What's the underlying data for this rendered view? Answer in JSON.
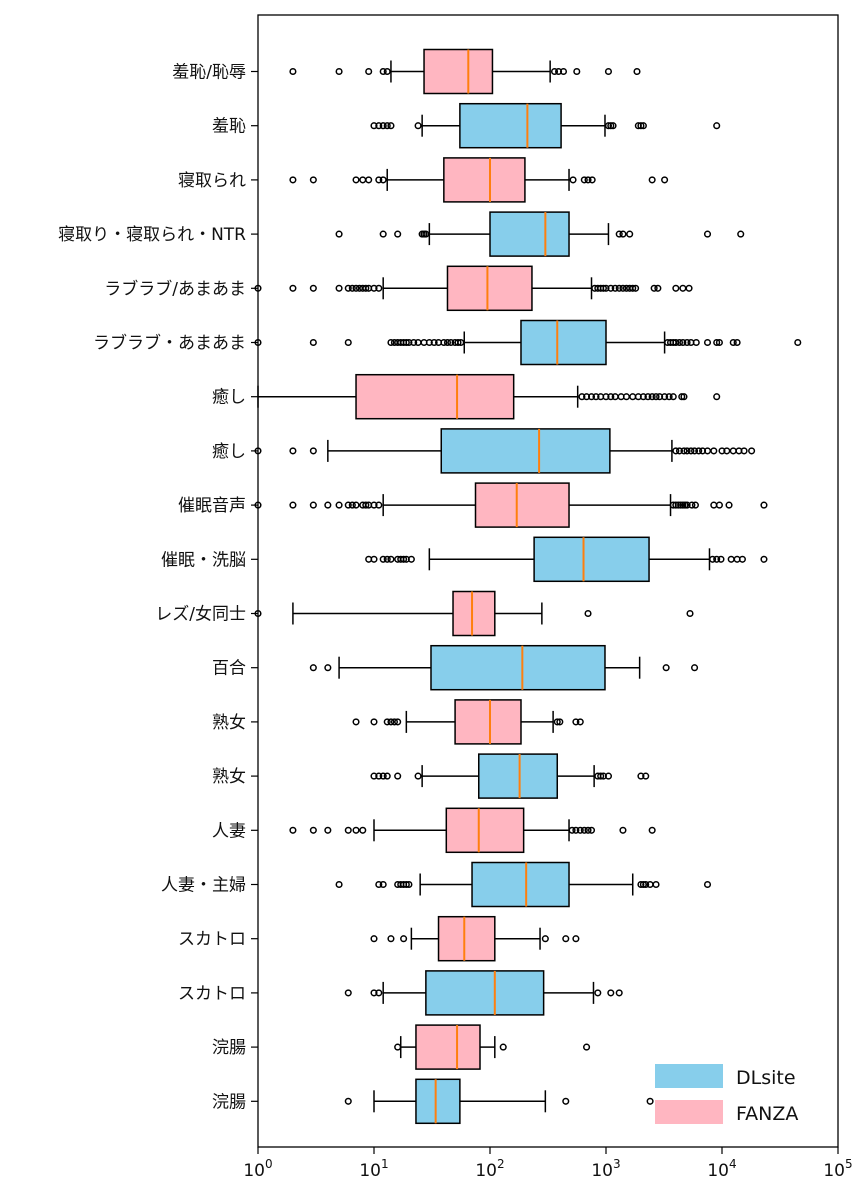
{
  "chart_data": {
    "type": "boxplot",
    "orientation": "horizontal",
    "x_scale": "log",
    "xlim": [
      1,
      100000
    ],
    "x_ticks": [
      {
        "value": 1,
        "base": "10",
        "exp": "0"
      },
      {
        "value": 10,
        "base": "10",
        "exp": "1"
      },
      {
        "value": 100,
        "base": "10",
        "exp": "2"
      },
      {
        "value": 1000,
        "base": "10",
        "exp": "3"
      },
      {
        "value": 10000,
        "base": "10",
        "exp": "4"
      },
      {
        "value": 100000,
        "base": "10",
        "exp": "5"
      }
    ],
    "grid": false,
    "legend_position": "bottom-right",
    "legend": [
      {
        "label": "DLsite",
        "color": "#87ceeb"
      },
      {
        "label": "FANZA",
        "color": "#ffb6c1"
      }
    ],
    "median_color": "#ff7f0e",
    "categories": [
      {
        "label": "羞恥/恥辱",
        "source": "FANZA",
        "whisker_low": 14,
        "q1": 27,
        "median": 65,
        "q3": 105,
        "whisker_high": 330,
        "fliers": [
          2,
          5,
          9,
          12,
          13,
          360,
          390,
          430,
          560,
          1050,
          1850
        ]
      },
      {
        "label": "羞恥",
        "source": "DLsite",
        "whisker_low": 26,
        "q1": 55,
        "median": 210,
        "q3": 410,
        "whisker_high": 980,
        "fliers": [
          10,
          11,
          12,
          13,
          14,
          24,
          1050,
          1100,
          1150,
          1900,
          2000,
          2100,
          9000
        ]
      },
      {
        "label": "寝取られ",
        "source": "FANZA",
        "whisker_low": 13,
        "q1": 40,
        "median": 100,
        "q3": 200,
        "whisker_high": 480,
        "fliers": [
          2,
          3,
          7,
          8,
          9,
          11,
          12,
          520,
          650,
          700,
          760,
          2500,
          3200
        ]
      },
      {
        "label": "寝取り・寝取られ・NTR",
        "source": "DLsite",
        "whisker_low": 30,
        "q1": 100,
        "median": 300,
        "q3": 480,
        "whisker_high": 1050,
        "fliers": [
          5,
          12,
          16,
          26,
          27,
          28,
          1300,
          1400,
          1600,
          7500,
          14500
        ]
      },
      {
        "label": "ラブラブ/あまあま",
        "source": "FANZA",
        "whisker_low": 12,
        "q1": 43,
        "median": 95,
        "q3": 230,
        "whisker_high": 750,
        "fliers": [
          1,
          2,
          3,
          5,
          6,
          6.5,
          7,
          7.5,
          8,
          8.5,
          9,
          10,
          11,
          800,
          850,
          900,
          950,
          1000,
          1100,
          1200,
          1300,
          1400,
          1500,
          1600,
          1700,
          1800,
          2600,
          2800,
          4000,
          4600,
          5200
        ]
      },
      {
        "label": "ラブラブ・あまあま",
        "source": "DLsite",
        "whisker_low": 60,
        "q1": 185,
        "median": 380,
        "q3": 1000,
        "whisker_high": 3200,
        "fliers": [
          1,
          3,
          6,
          14,
          15,
          16,
          17,
          18,
          19,
          20,
          22,
          24,
          27,
          30,
          33,
          36,
          40,
          43,
          46,
          50,
          53,
          56,
          3400,
          3600,
          3800,
          4000,
          4300,
          4600,
          5000,
          5400,
          6000,
          7500,
          9000,
          9500,
          12500,
          13500,
          45000
        ]
      },
      {
        "label": "癒し",
        "source": "FANZA",
        "whisker_low": 1,
        "q1": 7,
        "median": 52,
        "q3": 160,
        "whisker_high": 570,
        "fliers": [
          620,
          680,
          750,
          820,
          900,
          1000,
          1100,
          1200,
          1350,
          1500,
          1700,
          1900,
          2100,
          2300,
          2500,
          2700,
          2900,
          3200,
          3500,
          3800,
          4500,
          4700,
          9000
        ]
      },
      {
        "label": "癒し",
        "source": "DLsite",
        "whisker_low": 4,
        "q1": 38,
        "median": 265,
        "q3": 1080,
        "whisker_high": 3700,
        "fliers": [
          1,
          2,
          3,
          4000,
          4300,
          4700,
          5000,
          5400,
          5800,
          6300,
          6800,
          7500,
          8500,
          10000,
          11000,
          12500,
          14000,
          15500,
          18000
        ]
      },
      {
        "label": "催眠音声",
        "source": "FANZA",
        "whisker_low": 12,
        "q1": 75,
        "median": 170,
        "q3": 480,
        "whisker_high": 3600,
        "fliers": [
          1,
          2,
          3,
          4,
          5,
          6,
          6.5,
          7,
          8,
          8.5,
          9,
          10,
          11,
          3800,
          4000,
          4200,
          4400,
          4600,
          4800,
          5000,
          5500,
          5900,
          8500,
          9500,
          11500,
          23000
        ]
      },
      {
        "label": "催眠・洗脳",
        "source": "DLsite",
        "whisker_low": 30,
        "q1": 240,
        "median": 640,
        "q3": 2350,
        "whisker_high": 7800,
        "fliers": [
          9,
          10,
          12,
          13,
          14,
          16,
          17,
          18,
          19,
          21,
          8300,
          9000,
          9800,
          12000,
          13500,
          15000,
          23000
        ]
      },
      {
        "label": "レズ/女同士",
        "source": "FANZA",
        "whisker_low": 2,
        "q1": 48,
        "median": 70,
        "q3": 110,
        "whisker_high": 280,
        "fliers": [
          1,
          700,
          5300
        ]
      },
      {
        "label": "百合",
        "source": "DLsite",
        "whisker_low": 5,
        "q1": 31,
        "median": 190,
        "q3": 980,
        "whisker_high": 1950,
        "fliers": [
          3,
          4,
          3300,
          5800
        ]
      },
      {
        "label": "熟女",
        "source": "FANZA",
        "whisker_low": 19,
        "q1": 50,
        "median": 100,
        "q3": 185,
        "whisker_high": 350,
        "fliers": [
          7,
          10,
          13,
          14,
          15,
          16,
          380,
          400,
          550,
          600
        ]
      },
      {
        "label": "熟女",
        "source": "DLsite",
        "whisker_low": 26,
        "q1": 80,
        "median": 180,
        "q3": 380,
        "whisker_high": 790,
        "fliers": [
          10,
          11,
          12,
          13,
          16,
          24,
          850,
          900,
          950,
          1050,
          2000,
          2200
        ]
      },
      {
        "label": "人妻",
        "source": "FANZA",
        "whisker_low": 10,
        "q1": 42,
        "median": 80,
        "q3": 195,
        "whisker_high": 480,
        "fliers": [
          2,
          3,
          4,
          6,
          7,
          8,
          510,
          550,
          600,
          650,
          700,
          750,
          1400,
          2500
        ]
      },
      {
        "label": "人妻・主婦",
        "source": "DLsite",
        "whisker_low": 25,
        "q1": 70,
        "median": 205,
        "q3": 480,
        "whisker_high": 1700,
        "fliers": [
          5,
          11,
          12,
          16,
          17,
          18,
          19,
          20,
          2000,
          2100,
          2200,
          2400,
          2700,
          7500
        ]
      },
      {
        "label": "スカトロ",
        "source": "FANZA",
        "whisker_low": 21,
        "q1": 36,
        "median": 60,
        "q3": 110,
        "whisker_high": 270,
        "fliers": [
          10,
          14,
          18,
          300,
          450,
          550
        ]
      },
      {
        "label": "スカトロ",
        "source": "DLsite",
        "whisker_low": 12,
        "q1": 28,
        "median": 110,
        "q3": 290,
        "whisker_high": 780,
        "fliers": [
          6,
          10,
          11,
          850,
          1100,
          1300
        ]
      },
      {
        "label": "浣腸",
        "source": "FANZA",
        "whisker_low": 17,
        "q1": 23,
        "median": 52,
        "q3": 82,
        "whisker_high": 110,
        "fliers": [
          16,
          130,
          680
        ]
      },
      {
        "label": "浣腸",
        "source": "DLsite",
        "whisker_low": 10,
        "q1": 23,
        "median": 34,
        "q3": 55,
        "whisker_high": 300,
        "fliers": [
          6,
          450,
          2400
        ]
      }
    ]
  }
}
